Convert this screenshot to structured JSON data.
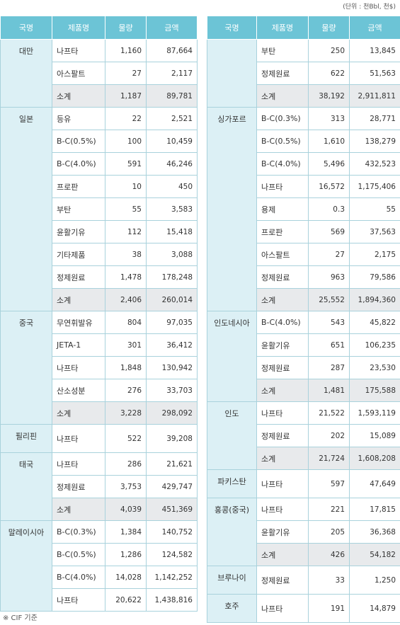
{
  "unit_note": "(단위 : 천Bbl, 천$)",
  "headers": [
    "국명",
    "제품명",
    "물량",
    "금액"
  ],
  "left_groups": [
    {
      "country": "대만",
      "rows": [
        {
          "product": "나프타",
          "qty": "1,160",
          "amount": "87,664"
        },
        {
          "product": "아스팔트",
          "qty": "27",
          "amount": "2,117"
        },
        {
          "product": "소계",
          "qty": "1,187",
          "amount": "89,781",
          "subtotal": true
        }
      ]
    },
    {
      "country": "일본",
      "rows": [
        {
          "product": "등유",
          "qty": "22",
          "amount": "2,521"
        },
        {
          "product": "B-C(0.5%)",
          "qty": "100",
          "amount": "10,459"
        },
        {
          "product": "B-C(4.0%)",
          "qty": "591",
          "amount": "46,246"
        },
        {
          "product": "프로판",
          "qty": "10",
          "amount": "450"
        },
        {
          "product": "부탄",
          "qty": "55",
          "amount": "3,583"
        },
        {
          "product": "윤활기유",
          "qty": "112",
          "amount": "15,418"
        },
        {
          "product": "기타제품",
          "qty": "38",
          "amount": "3,088"
        },
        {
          "product": "정제원료",
          "qty": "1,478",
          "amount": "178,248"
        },
        {
          "product": "소계",
          "qty": "2,406",
          "amount": "260,014",
          "subtotal": true
        }
      ]
    },
    {
      "country": "중국",
      "rows": [
        {
          "product": "무연휘발유",
          "qty": "804",
          "amount": "97,035"
        },
        {
          "product": "JETA-1",
          "qty": "301",
          "amount": "36,412"
        },
        {
          "product": "나프타",
          "qty": "1,848",
          "amount": "130,942"
        },
        {
          "product": "산소성분",
          "qty": "276",
          "amount": "33,703"
        },
        {
          "product": "소계",
          "qty": "3,228",
          "amount": "298,092",
          "subtotal": true
        }
      ]
    },
    {
      "country": "필리핀",
      "rows": [
        {
          "product": "나프타",
          "qty": "522",
          "amount": "39,208"
        }
      ]
    },
    {
      "country": "태국",
      "rows": [
        {
          "product": "나프타",
          "qty": "286",
          "amount": "21,621"
        },
        {
          "product": "정제원료",
          "qty": "3,753",
          "amount": "429,747"
        },
        {
          "product": "소계",
          "qty": "4,039",
          "amount": "451,369",
          "subtotal": true
        }
      ]
    },
    {
      "country": "말레이시아",
      "rows": [
        {
          "product": "B-C(0.3%)",
          "qty": "1,384",
          "amount": "140,752"
        },
        {
          "product": "B-C(0.5%)",
          "qty": "1,286",
          "amount": "124,582"
        },
        {
          "product": "B-C(4.0%)",
          "qty": "14,028",
          "amount": "1,142,252"
        },
        {
          "product": "나프타",
          "qty": "20,622",
          "amount": "1,438,816"
        }
      ]
    }
  ],
  "right_groups": [
    {
      "country": "",
      "rows": [
        {
          "product": "부탄",
          "qty": "250",
          "amount": "13,845"
        },
        {
          "product": "정제원료",
          "qty": "622",
          "amount": "51,563"
        },
        {
          "product": "소계",
          "qty": "38,192",
          "amount": "2,911,811",
          "subtotal": true
        }
      ]
    },
    {
      "country": "싱가포르",
      "rows": [
        {
          "product": "B-C(0.3%)",
          "qty": "313",
          "amount": "28,771"
        },
        {
          "product": "B-C(0.5%)",
          "qty": "1,610",
          "amount": "138,279"
        },
        {
          "product": "B-C(4.0%)",
          "qty": "5,496",
          "amount": "432,523"
        },
        {
          "product": "나프타",
          "qty": "16,572",
          "amount": "1,175,406"
        },
        {
          "product": "용제",
          "qty": "0.3",
          "amount": "55"
        },
        {
          "product": "프로판",
          "qty": "569",
          "amount": "37,563"
        },
        {
          "product": "아스팔트",
          "qty": "27",
          "amount": "2,175"
        },
        {
          "product": "정제원료",
          "qty": "963",
          "amount": "79,586"
        },
        {
          "product": "소계",
          "qty": "25,552",
          "amount": "1,894,360",
          "subtotal": true
        }
      ]
    },
    {
      "country": "인도네시아",
      "rows": [
        {
          "product": "B-C(4.0%)",
          "qty": "543",
          "amount": "45,822"
        },
        {
          "product": "윤활기유",
          "qty": "651",
          "amount": "106,235"
        },
        {
          "product": "정제원료",
          "qty": "287",
          "amount": "23,530"
        },
        {
          "product": "소계",
          "qty": "1,481",
          "amount": "175,588",
          "subtotal": true
        }
      ]
    },
    {
      "country": "인도",
      "rows": [
        {
          "product": "나프타",
          "qty": "21,522",
          "amount": "1,593,119"
        },
        {
          "product": "정제원료",
          "qty": "202",
          "amount": "15,089"
        },
        {
          "product": "소계",
          "qty": "21,724",
          "amount": "1,608,208",
          "subtotal": true
        }
      ]
    },
    {
      "country": "파키스탄",
      "rows": [
        {
          "product": "나프타",
          "qty": "597",
          "amount": "47,649"
        }
      ]
    },
    {
      "country": "홍콩(중국)",
      "rows": [
        {
          "product": "나프타",
          "qty": "221",
          "amount": "17,815"
        },
        {
          "product": "윤활기유",
          "qty": "205",
          "amount": "36,368"
        },
        {
          "product": "소계",
          "qty": "426",
          "amount": "54,182",
          "subtotal": true
        }
      ]
    },
    {
      "country": "브루나이",
      "rows": [
        {
          "product": "정제원료",
          "qty": "33",
          "amount": "1,250"
        }
      ]
    },
    {
      "country": "호주",
      "rows": [
        {
          "product": "나프타",
          "qty": "191",
          "amount": "14,879"
        }
      ]
    }
  ],
  "footnote": "※ CIF 기준"
}
